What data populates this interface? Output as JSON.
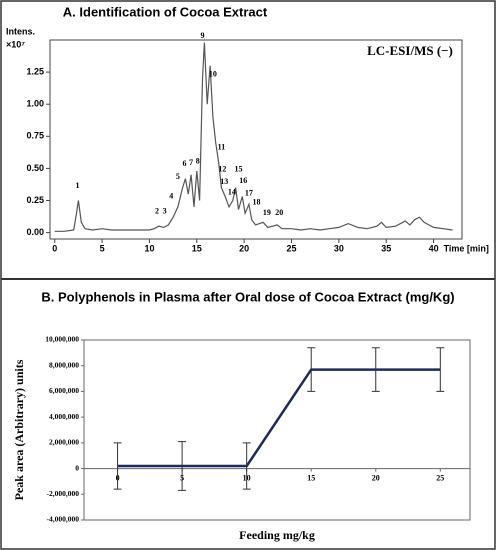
{
  "chart_data": [
    {
      "type": "line",
      "title": "A. Identification of Cocoa Extract",
      "annotation": "LC-ESI/MS (−)",
      "y_label": "Intens.",
      "y_scale_label": "×10⁷",
      "x_label": "Time [min]",
      "x": [
        0,
        1,
        2,
        2.3,
        2.5,
        2.8,
        3.2,
        4,
        5,
        6,
        7,
        8,
        9,
        10,
        10.5,
        11,
        11.5,
        12,
        12.5,
        13,
        13.5,
        13.8,
        14.1,
        14.4,
        14.7,
        15,
        15.3,
        15.6,
        15.8,
        16.1,
        16.4,
        16.7,
        17,
        17.3,
        17.6,
        18,
        18.4,
        18.8,
        19.1,
        19.4,
        19.8,
        20.1,
        20.5,
        20.8,
        21.2,
        22,
        22.5,
        23.5,
        24,
        25,
        26,
        27,
        28,
        29,
        30,
        31,
        32,
        33,
        34,
        34.5,
        35,
        36,
        37,
        37.5,
        38,
        38.5,
        39,
        40,
        41,
        42
      ],
      "values": [
        0.01,
        0.01,
        0.02,
        0.15,
        0.25,
        0.08,
        0.03,
        0.02,
        0.03,
        0.02,
        0.02,
        0.02,
        0.02,
        0.02,
        0.03,
        0.05,
        0.04,
        0.06,
        0.12,
        0.2,
        0.35,
        0.42,
        0.3,
        0.45,
        0.2,
        0.48,
        0.25,
        1.2,
        1.48,
        1.0,
        1.3,
        0.9,
        0.7,
        0.55,
        0.35,
        0.28,
        0.2,
        0.25,
        0.35,
        0.18,
        0.28,
        0.15,
        0.22,
        0.1,
        0.06,
        0.08,
        0.04,
        0.06,
        0.03,
        0.03,
        0.02,
        0.03,
        0.02,
        0.03,
        0.04,
        0.07,
        0.04,
        0.03,
        0.05,
        0.08,
        0.04,
        0.05,
        0.09,
        0.06,
        0.1,
        0.12,
        0.08,
        0.04,
        0.03,
        0.02
      ],
      "color": "#555555",
      "xlim": [
        -0.5,
        43
      ],
      "xticks": [
        0,
        5,
        10,
        15,
        20,
        25,
        30,
        35,
        40
      ],
      "ylim": [
        -0.05,
        1.5
      ],
      "yticks": [
        {
          "value": 0,
          "label": "0.00"
        },
        {
          "value": 0.25,
          "label": "0.25"
        },
        {
          "value": 0.5,
          "label": "0.50"
        },
        {
          "value": 0.75,
          "label": "0.75"
        },
        {
          "value": 1,
          "label": "1.00"
        },
        {
          "value": 1.25,
          "label": "1.25"
        }
      ],
      "peak_labels": [
        {
          "text": "1",
          "x": 2.4,
          "y": 0.33
        },
        {
          "text": "2",
          "x": 10.8,
          "y": 0.13
        },
        {
          "text": "3",
          "x": 11.6,
          "y": 0.13
        },
        {
          "text": "4",
          "x": 12.3,
          "y": 0.25
        },
        {
          "text": "5",
          "x": 13.0,
          "y": 0.4
        },
        {
          "text": "6",
          "x": 13.7,
          "y": 0.5
        },
        {
          "text": "7",
          "x": 14.4,
          "y": 0.51
        },
        {
          "text": "8",
          "x": 15.1,
          "y": 0.52
        },
        {
          "text": "9",
          "x": 15.6,
          "y": 1.5
        },
        {
          "text": "10",
          "x": 16.7,
          "y": 1.2
        },
        {
          "text": "11",
          "x": 17.6,
          "y": 0.63
        },
        {
          "text": "12",
          "x": 17.7,
          "y": 0.46
        },
        {
          "text": "13",
          "x": 17.9,
          "y": 0.36
        },
        {
          "text": "14",
          "x": 18.7,
          "y": 0.28
        },
        {
          "text": "15",
          "x": 19.4,
          "y": 0.46
        },
        {
          "text": "16",
          "x": 19.9,
          "y": 0.37
        },
        {
          "text": "17",
          "x": 20.5,
          "y": 0.27
        },
        {
          "text": "18",
          "x": 21.3,
          "y": 0.2
        },
        {
          "text": "19",
          "x": 22.4,
          "y": 0.12
        },
        {
          "text": "20",
          "x": 23.7,
          "y": 0.12
        }
      ]
    },
    {
      "type": "errorline",
      "title": "B. Polyphenols in Plasma after Oral dose of Cocoa Extract (mg/Kg)",
      "y_label": "Peak area (Arbitrary) units",
      "x_label": "Feeding mg/kg",
      "x": [
        0,
        5,
        10,
        15,
        20,
        25
      ],
      "values": [
        200000,
        200000,
        200000,
        7700000,
        7700000,
        7700000
      ],
      "errors": [
        1800000,
        1900000,
        1800000,
        1700000,
        1700000,
        1700000
      ],
      "color": "#1f2a5c",
      "xlim": [
        -2.6,
        27.3
      ],
      "xticks": [
        0,
        5,
        10,
        15,
        20,
        25
      ],
      "ylim": [
        -4000000,
        10000000
      ],
      "yticks": [
        {
          "value": -4000000,
          "label": "-4,000,000"
        },
        {
          "value": -2000000,
          "label": "-2,000,000"
        },
        {
          "value": 0,
          "label": "0"
        },
        {
          "value": 2000000,
          "label": "2,000,000"
        },
        {
          "value": 4000000,
          "label": "4,000,000"
        },
        {
          "value": 6000000,
          "label": "6,000,000"
        },
        {
          "value": 8000000,
          "label": "8,000,000"
        },
        {
          "value": 10000000,
          "label": "10,000,000"
        }
      ]
    }
  ]
}
